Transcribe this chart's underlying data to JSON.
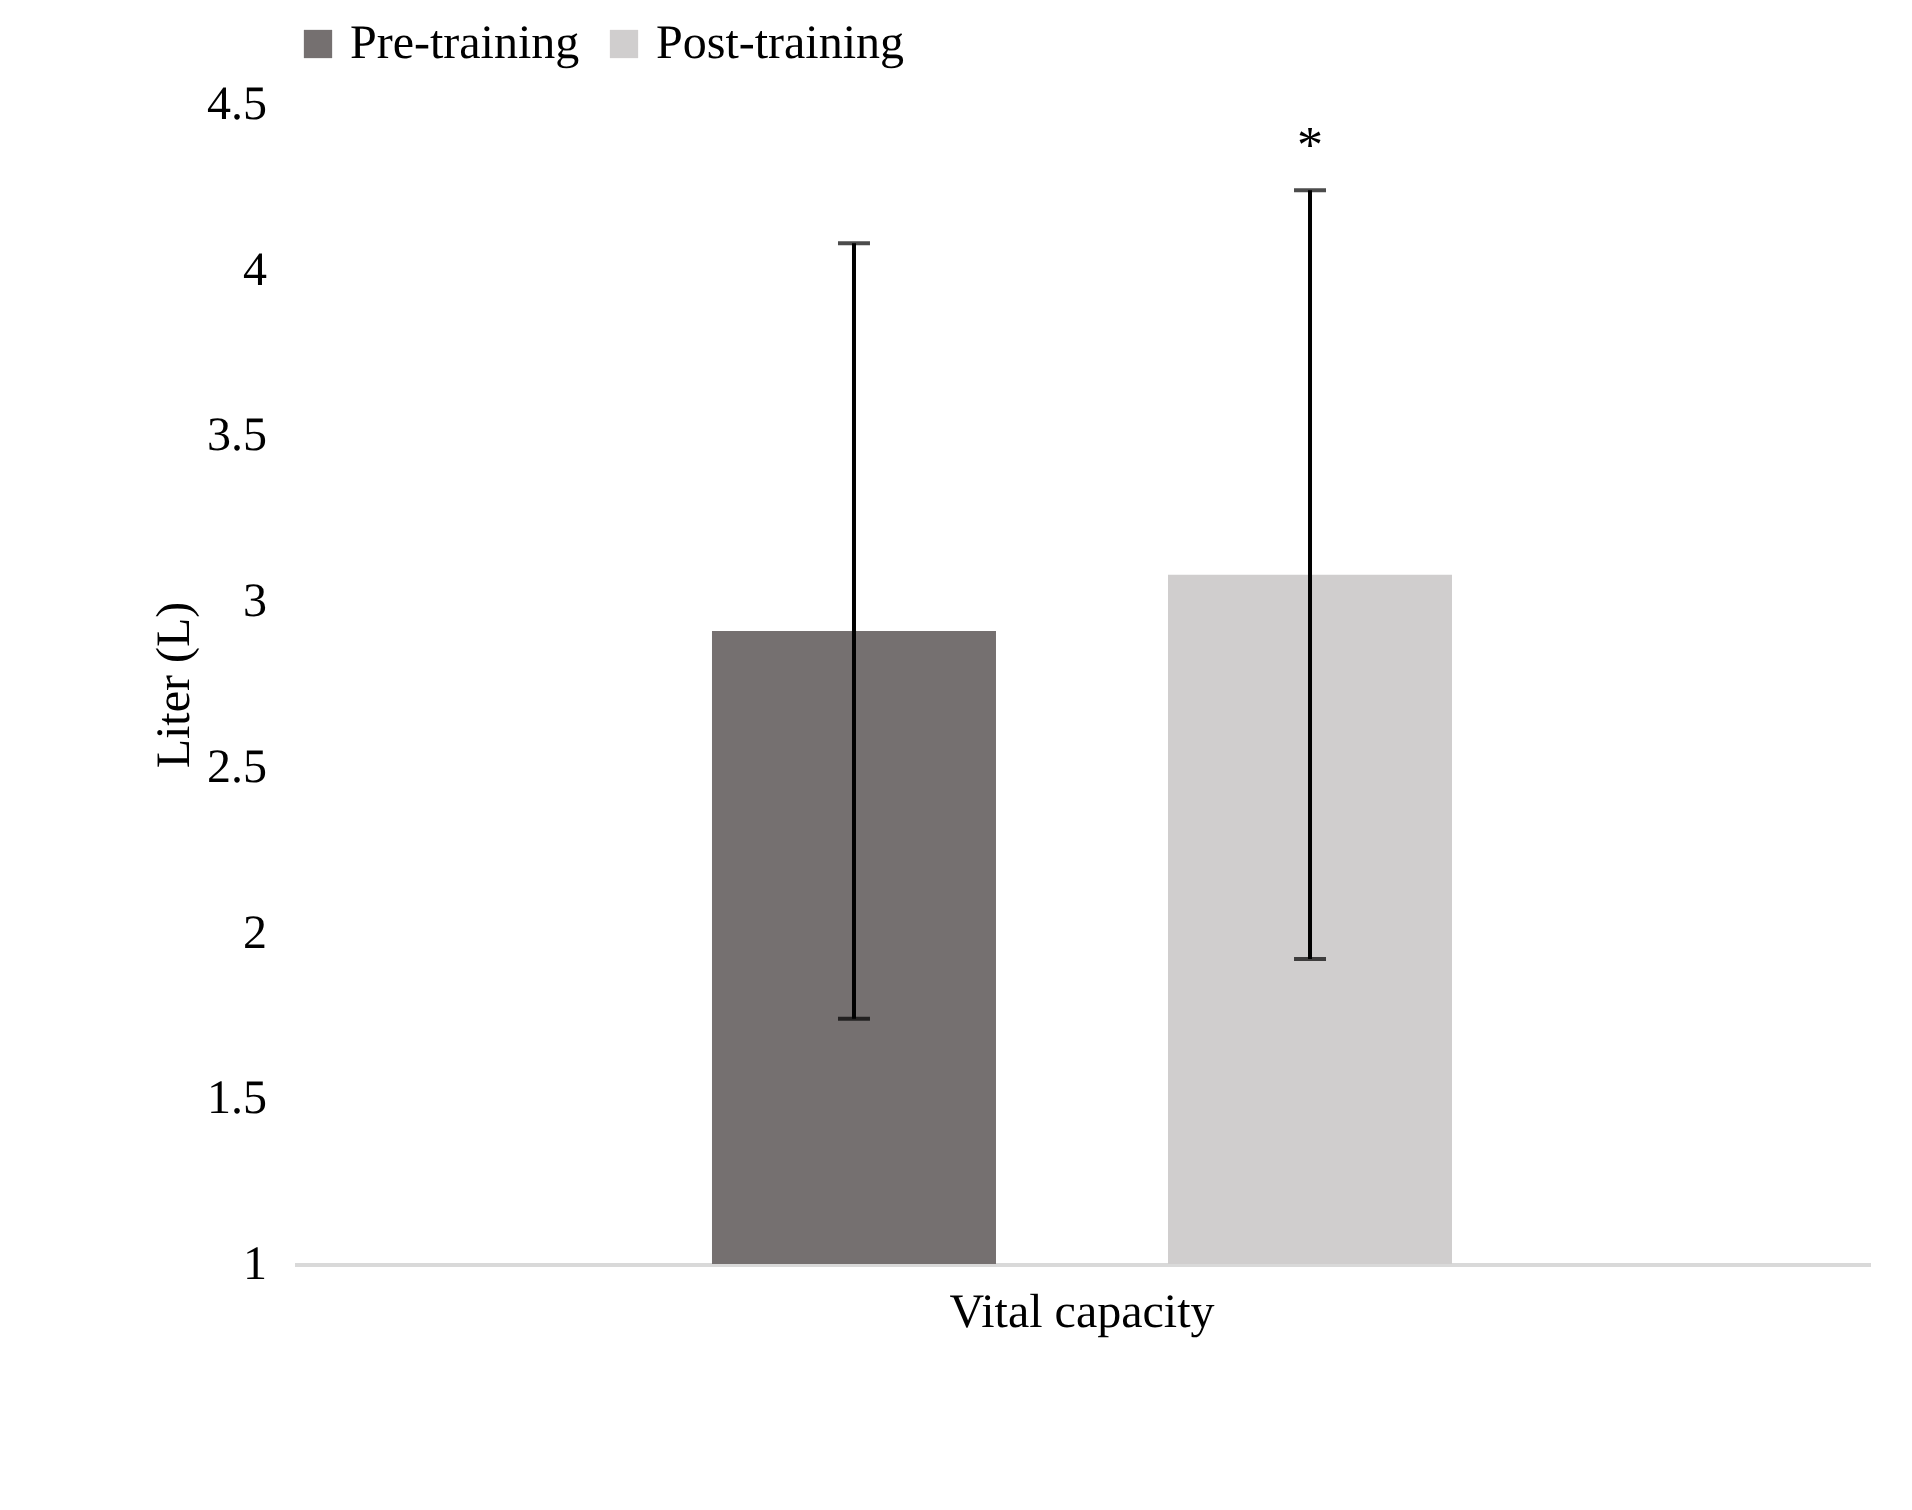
{
  "chart_data": {
    "type": "bar",
    "categories": [
      "Vital capacity"
    ],
    "ylabel": "Liter (L)",
    "series": [
      {
        "name": "Pre-training",
        "color": "#757070",
        "values": [
          2.91
        ],
        "errors": [
          1.17
        ]
      },
      {
        "name": "Post-training",
        "color": "#d0cece",
        "values": [
          3.08
        ],
        "errors": [
          1.16
        ]
      }
    ],
    "ylim": [
      1,
      4.5
    ],
    "yticks": [
      1,
      1.5,
      2,
      2.5,
      3,
      3.5,
      4,
      4.5
    ],
    "grid": false,
    "legend": "top",
    "annotations": [
      "*"
    ]
  }
}
